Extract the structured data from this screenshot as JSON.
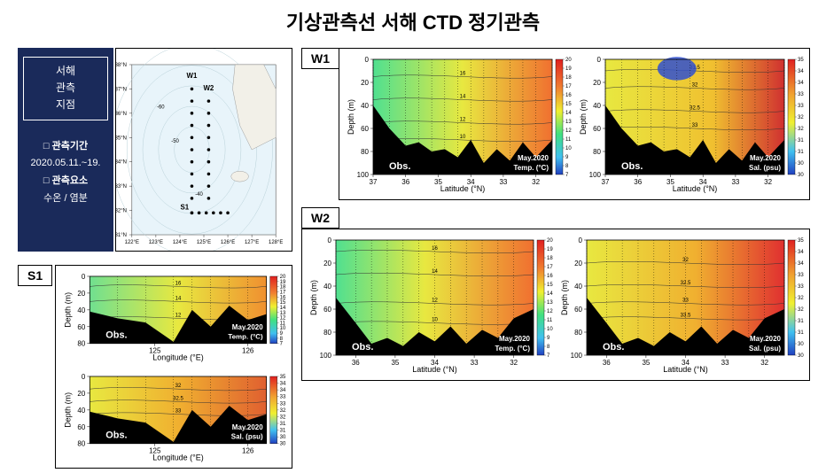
{
  "title": "기상관측선 서해 CTD 정기관측",
  "info": {
    "region_l1": "서해",
    "region_l2": "관측",
    "region_l3": "지점",
    "period_hdr": "□ 관측기간",
    "period_val": "2020.05.11.~19.",
    "params_hdr": "□ 관측요소",
    "params_val": "수온 / 염분"
  },
  "map": {
    "lon_min": 122,
    "lon_max": 128,
    "lat_min": 31,
    "lat_max": 38,
    "lon_ticks": [
      122,
      123,
      124,
      125,
      126,
      127,
      128
    ],
    "lat_ticks": [
      31,
      32,
      33,
      34,
      35,
      36,
      37,
      38
    ],
    "land_color": "#f2f0e8",
    "sea_color": "#e8f4fa",
    "contour_color": "#b8d0d8",
    "stations_W1": {
      "label": "W1",
      "lon": 124.5,
      "lats": [
        37,
        36.5,
        36,
        35.5,
        35,
        34.5,
        34,
        33.5,
        33,
        32.5,
        31.9
      ]
    },
    "stations_W2": {
      "label": "W2",
      "lon": 125.2,
      "lats": [
        36.5,
        36,
        35.5,
        35,
        34.5,
        34,
        33.5,
        33,
        32.5
      ]
    },
    "stations_S1": {
      "label": "S1",
      "lat": 31.9,
      "lons": [
        124.5,
        124.8,
        125.1,
        125.4,
        125.7,
        126.0
      ]
    },
    "bathy_labels": [
      {
        "lon": 123.2,
        "lat": 36.2,
        "t": "-60"
      },
      {
        "lon": 124.8,
        "lat": 32.6,
        "t": "-40"
      },
      {
        "lon": 123.8,
        "lat": 34.8,
        "t": "-50"
      }
    ]
  },
  "colormaps": {
    "temp": {
      "min": 7,
      "max": 20,
      "stops": [
        {
          "p": 0,
          "c": "#2040c0"
        },
        {
          "p": 0.15,
          "c": "#40c0f0"
        },
        {
          "p": 0.35,
          "c": "#40e080"
        },
        {
          "p": 0.55,
          "c": "#f0f030"
        },
        {
          "p": 0.75,
          "c": "#f08030"
        },
        {
          "p": 1,
          "c": "#e02020"
        }
      ],
      "ticks": [
        7,
        8,
        9,
        10,
        11,
        12,
        13,
        14,
        15,
        16,
        17,
        18,
        19,
        20
      ],
      "label": "Temp. (°C)"
    },
    "sal": {
      "min": 30,
      "max": 35,
      "stops": [
        {
          "p": 0,
          "c": "#2040c0"
        },
        {
          "p": 0.2,
          "c": "#40c0f0"
        },
        {
          "p": 0.45,
          "c": "#f0f030"
        },
        {
          "p": 0.7,
          "c": "#f0a030"
        },
        {
          "p": 1,
          "c": "#e02020"
        }
      ],
      "ticks": [
        30,
        30.5,
        31,
        31.5,
        32,
        32.5,
        33,
        33.5,
        34,
        34.5,
        35
      ],
      "label": "Sal. (psu)"
    }
  },
  "sections": {
    "W1": {
      "x_label": "Latitude (°N)",
      "x_min": 31.5,
      "x_max": 37,
      "x_ticks": [
        32,
        33,
        34,
        35,
        36,
        37
      ],
      "y_label": "Depth (m)",
      "y_min": 0,
      "y_max": 100,
      "y_ticks": [
        0,
        20,
        40,
        60,
        80,
        100
      ],
      "date": "May.2020",
      "bottom": [
        {
          "x": 37,
          "d": 40
        },
        {
          "x": 36.5,
          "d": 60
        },
        {
          "x": 36,
          "d": 75
        },
        {
          "x": 35.6,
          "d": 72
        },
        {
          "x": 35.2,
          "d": 80
        },
        {
          "x": 34.8,
          "d": 78
        },
        {
          "x": 34.4,
          "d": 85
        },
        {
          "x": 34,
          "d": 70
        },
        {
          "x": 33.6,
          "d": 90
        },
        {
          "x": 33.2,
          "d": 78
        },
        {
          "x": 32.8,
          "d": 88
        },
        {
          "x": 32.4,
          "d": 72
        },
        {
          "x": 32,
          "d": 85
        },
        {
          "x": 31.5,
          "d": 70
        }
      ],
      "temp_field": {
        "bg_stops": [
          {
            "p": 0,
            "c": "#50e090"
          },
          {
            "p": 0.5,
            "c": "#e8e840"
          },
          {
            "p": 1,
            "c": "#f07030"
          }
        ],
        "contours": [
          {
            "v": 10,
            "d": 70
          },
          {
            "v": 12,
            "d": 55
          },
          {
            "v": 14,
            "d": 35
          },
          {
            "v": 16,
            "d": 15
          }
        ]
      },
      "sal_field": {
        "bg_stops": [
          {
            "p": 0,
            "c": "#e8e840"
          },
          {
            "p": 0.6,
            "c": "#f0c030"
          },
          {
            "p": 1,
            "c": "#d03030"
          }
        ],
        "contours": [
          {
            "v": 31.5,
            "d": 10
          },
          {
            "v": 32,
            "d": 25
          },
          {
            "v": 32.5,
            "d": 45
          },
          {
            "v": 33,
            "d": 60
          }
        ],
        "anomaly": {
          "x": 34.8,
          "d": 8,
          "c": "#3050d0",
          "r": 22
        }
      }
    },
    "W2": {
      "x_label": "Latitude (°N)",
      "x_min": 31.5,
      "x_max": 36.5,
      "x_ticks": [
        32,
        33,
        34,
        35,
        36
      ],
      "y_label": "Depth (m)",
      "y_min": 0,
      "y_max": 100,
      "y_ticks": [
        0,
        20,
        40,
        60,
        80,
        100
      ],
      "date": "May.2020",
      "bottom": [
        {
          "x": 36.5,
          "d": 50
        },
        {
          "x": 36,
          "d": 72
        },
        {
          "x": 35.6,
          "d": 90
        },
        {
          "x": 35.2,
          "d": 85
        },
        {
          "x": 34.8,
          "d": 92
        },
        {
          "x": 34.4,
          "d": 80
        },
        {
          "x": 34,
          "d": 88
        },
        {
          "x": 33.6,
          "d": 75
        },
        {
          "x": 33.2,
          "d": 90
        },
        {
          "x": 32.8,
          "d": 78
        },
        {
          "x": 32.4,
          "d": 85
        },
        {
          "x": 32,
          "d": 68
        },
        {
          "x": 31.5,
          "d": 60
        }
      ],
      "temp_field": {
        "bg_stops": [
          {
            "p": 0,
            "c": "#50e090"
          },
          {
            "p": 0.45,
            "c": "#e8e840"
          },
          {
            "p": 1,
            "c": "#f07030"
          }
        ],
        "contours": [
          {
            "v": 10,
            "d": 72
          },
          {
            "v": 12,
            "d": 55
          },
          {
            "v": 14,
            "d": 30
          },
          {
            "v": 16,
            "d": 10
          }
        ]
      },
      "sal_field": {
        "bg_stops": [
          {
            "p": 0,
            "c": "#e8e840"
          },
          {
            "p": 0.55,
            "c": "#f0b030"
          },
          {
            "p": 1,
            "c": "#e03030"
          }
        ],
        "contours": [
          {
            "v": 32,
            "d": 20
          },
          {
            "v": 32.5,
            "d": 40
          },
          {
            "v": 33,
            "d": 55
          },
          {
            "v": 33.5,
            "d": 68
          }
        ]
      }
    },
    "S1": {
      "x_label": "Longitude (°E)",
      "x_min": 124.3,
      "x_max": 126.2,
      "x_ticks": [
        125,
        126
      ],
      "y_label": "Depth (m)",
      "y_min": 0,
      "y_max": 80,
      "y_ticks": [
        0,
        20,
        40,
        60,
        80
      ],
      "date": "May.2020",
      "bottom": [
        {
          "x": 124.3,
          "d": 42
        },
        {
          "x": 124.6,
          "d": 50
        },
        {
          "x": 124.9,
          "d": 55
        },
        {
          "x": 125.2,
          "d": 78
        },
        {
          "x": 125.4,
          "d": 40
        },
        {
          "x": 125.6,
          "d": 60
        },
        {
          "x": 125.8,
          "d": 35
        },
        {
          "x": 126.0,
          "d": 52
        },
        {
          "x": 126.2,
          "d": 45
        }
      ],
      "temp_field": {
        "bg_stops": [
          {
            "p": 0,
            "c": "#70e090"
          },
          {
            "p": 0.5,
            "c": "#e8e840"
          },
          {
            "p": 1,
            "c": "#f09030"
          }
        ],
        "contours": [
          {
            "v": 12,
            "d": 50
          },
          {
            "v": 14,
            "d": 30
          },
          {
            "v": 16,
            "d": 12
          }
        ]
      },
      "sal_field": {
        "bg_stops": [
          {
            "p": 0,
            "c": "#e8e840"
          },
          {
            "p": 0.5,
            "c": "#f0b030"
          },
          {
            "p": 1,
            "c": "#e06030"
          }
        ],
        "contours": [
          {
            "v": 32,
            "d": 15
          },
          {
            "v": 32.5,
            "d": 30
          },
          {
            "v": 33,
            "d": 45
          }
        ]
      }
    }
  },
  "labels": {
    "obs": "Obs.",
    "W1": "W1",
    "W2": "W2",
    "S1": "S1"
  }
}
